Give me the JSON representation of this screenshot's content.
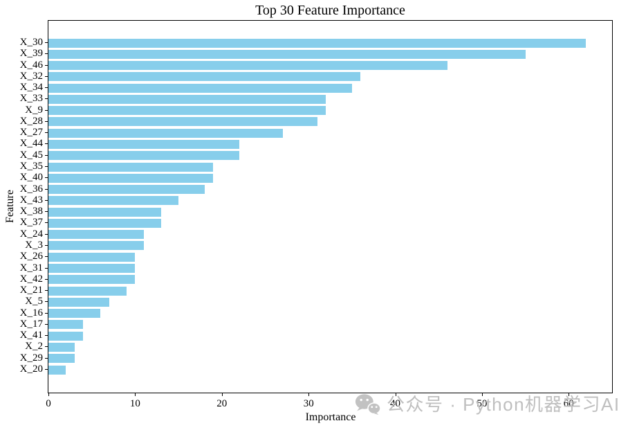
{
  "chart_data": {
    "type": "bar",
    "orientation": "horizontal",
    "title": "Top 30 Feature Importance",
    "xlabel": "Importance",
    "ylabel": "Feature",
    "categories": [
      "X_30",
      "X_39",
      "X_46",
      "X_32",
      "X_34",
      "X_33",
      "X_9",
      "X_28",
      "X_27",
      "X_44",
      "X_45",
      "X_35",
      "X_40",
      "X_36",
      "X_43",
      "X_38",
      "X_37",
      "X_24",
      "X_3",
      "X_26",
      "X_31",
      "X_42",
      "X_21",
      "X_5",
      "X_16",
      "X_17",
      "X_41",
      "X_2",
      "X_29",
      "X_20"
    ],
    "values": [
      62,
      55,
      46,
      36,
      35,
      32,
      32,
      31,
      27,
      22,
      22,
      19,
      19,
      18,
      15,
      13,
      13,
      11,
      11,
      10,
      10,
      10,
      9,
      7,
      6,
      4,
      4,
      3,
      3,
      2
    ],
    "xlim": [
      0,
      65
    ],
    "xticks": [
      0,
      10,
      20,
      30,
      40,
      50,
      60
    ],
    "bar_color": "#87CEEB",
    "background_color": "#ffffff",
    "axis_color": "#000000",
    "grid": false,
    "legend": null
  },
  "watermark": {
    "icon": "wechat-icon",
    "text": "公众号 · Python机器学习AI",
    "color": "#bfbfbf"
  }
}
